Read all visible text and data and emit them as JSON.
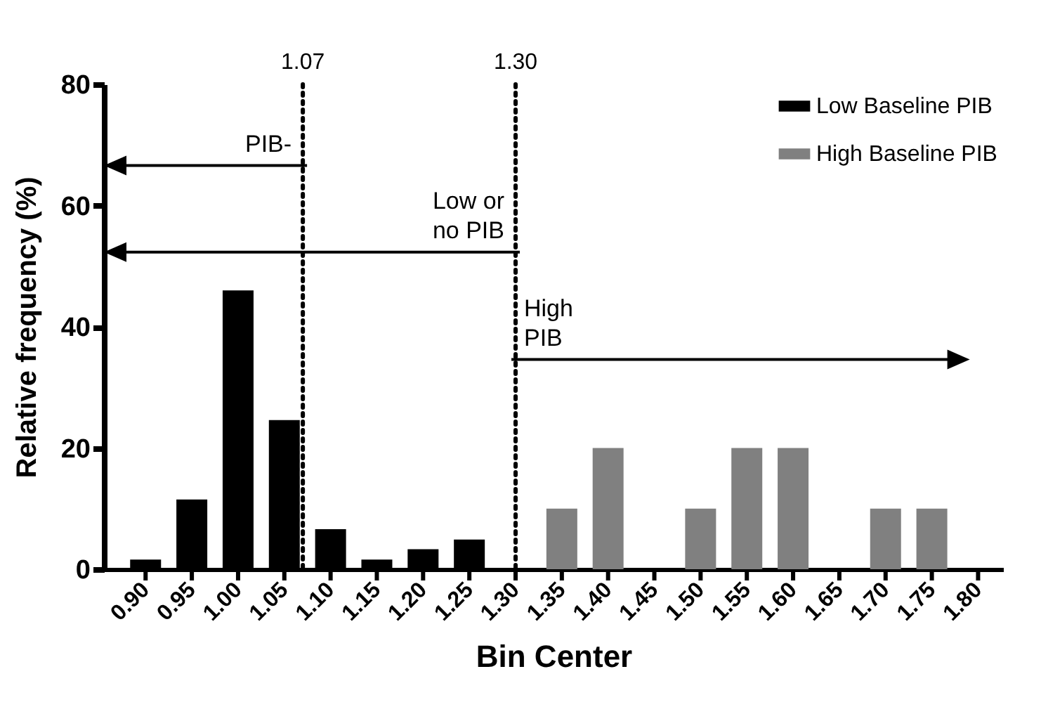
{
  "chart_data": {
    "type": "bar",
    "xlabel": "Bin Center",
    "ylabel": "Relative frequency (%)",
    "x": [
      0.9,
      0.95,
      1.0,
      1.05,
      1.1,
      1.15,
      1.2,
      1.25,
      1.3,
      1.35,
      1.4,
      1.45,
      1.5,
      1.55,
      1.6,
      1.65,
      1.7,
      1.75,
      1.8
    ],
    "series": [
      {
        "name": "Low Baseline PIB",
        "color": "#000000",
        "values": [
          1.6,
          11.5,
          46,
          24.6,
          6.6,
          1.6,
          3.3,
          4.9,
          0,
          null,
          null,
          null,
          null,
          null,
          null,
          null,
          null,
          null,
          null
        ]
      },
      {
        "name": "High Baseline PIB",
        "color": "#808080",
        "values": [
          null,
          null,
          null,
          null,
          null,
          null,
          null,
          null,
          null,
          10,
          20,
          0,
          10,
          20,
          20,
          0,
          10,
          10,
          0
        ]
      }
    ],
    "xlim": [
      0.855,
      1.827
    ],
    "xticks": [
      {
        "value": 0.9,
        "label": "0.90"
      },
      {
        "value": 0.95,
        "label": "0.95"
      },
      {
        "value": 1.0,
        "label": "1.00"
      },
      {
        "value": 1.05,
        "label": "1.05"
      },
      {
        "value": 1.1,
        "label": "1.10"
      },
      {
        "value": 1.15,
        "label": "1.15"
      },
      {
        "value": 1.2,
        "label": "1.20"
      },
      {
        "value": 1.25,
        "label": "1.25"
      },
      {
        "value": 1.3,
        "label": "1.30"
      },
      {
        "value": 1.35,
        "label": "1.35"
      },
      {
        "value": 1.4,
        "label": "1.40"
      },
      {
        "value": 1.45,
        "label": "1.45"
      },
      {
        "value": 1.5,
        "label": "1.50"
      },
      {
        "value": 1.55,
        "label": "1.55"
      },
      {
        "value": 1.6,
        "label": "1.60"
      },
      {
        "value": 1.65,
        "label": "1.65"
      },
      {
        "value": 1.7,
        "label": "1.70"
      },
      {
        "value": 1.75,
        "label": "1.75"
      },
      {
        "value": 1.8,
        "label": "1.80"
      }
    ],
    "ylim": [
      0,
      80
    ],
    "yticks": [
      0,
      20,
      40,
      60,
      80
    ],
    "ref_lines": [
      {
        "axis": "x",
        "value": 1.07,
        "label": "1.07",
        "line_style": "dotted"
      },
      {
        "axis": "x",
        "value": 1.3,
        "label": "1.30",
        "line_style": "dotted"
      }
    ],
    "annotations": [
      "PIB-",
      "Low or no PIB",
      "High PIB"
    ],
    "legend": "top right"
  }
}
